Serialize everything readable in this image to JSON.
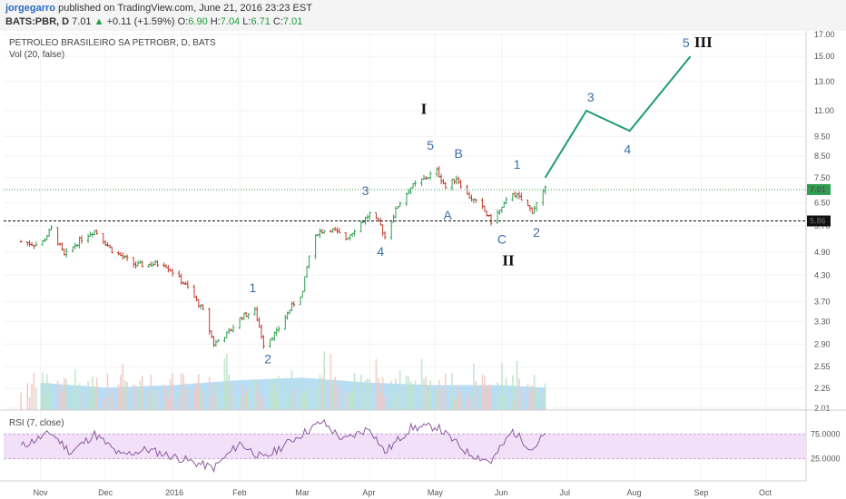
{
  "header": {
    "author": "jorgegarro",
    "published": "published on TradingView.com, June 21, 2016 23:23 EST",
    "symbol": "BATS:PBR, D",
    "last": "7.01",
    "arrow": "▲",
    "change": "+0.11 (+1.59%)",
    "o_key": "O:",
    "o_val": "6.90",
    "h_key": "H:",
    "h_val": "7.04",
    "l_key": "L:",
    "l_val": "6.71",
    "c_key": "C:",
    "c_val": "7.01"
  },
  "chart_data": {
    "type": "candlestick",
    "title": "PETROLEO BRASILEIRO SA PETROBR, D, BATS",
    "volume_label": "Vol (20, false)",
    "rsi_label": "RSI (7, close)",
    "price_axis_ticks": [
      "17.00",
      "15.00",
      "13.00",
      "11.00",
      "9.50",
      "8.50",
      "7.50",
      "6.50",
      "5.70",
      "4.90",
      "4.30",
      "3.70",
      "3.30",
      "2.90",
      "2.55",
      "2.25",
      "2.01"
    ],
    "last_price_tag": "7.01",
    "support_level": 5.86,
    "support_tag": "5.86",
    "rsi_axis_ticks": [
      "75.0000",
      "25.0000"
    ],
    "rsi_bands": [
      70,
      30
    ],
    "x_ticks": [
      "Nov",
      "Dec",
      "2016",
      "Feb",
      "Mar",
      "Apr",
      "May",
      "Jun",
      "Jul",
      "Aug",
      "Sep",
      "Oct"
    ],
    "price_path": [
      {
        "date": "2015-10-23",
        "close": 5.2
      },
      {
        "date": "2015-11-01",
        "close": 5.1
      },
      {
        "date": "2015-11-06",
        "close": 5.6
      },
      {
        "date": "2015-11-12",
        "close": 4.8
      },
      {
        "date": "2015-11-20",
        "close": 5.3
      },
      {
        "date": "2015-11-26",
        "close": 5.55
      },
      {
        "date": "2015-12-04",
        "close": 4.95
      },
      {
        "date": "2015-12-15",
        "close": 4.55
      },
      {
        "date": "2015-12-28",
        "close": 4.6
      },
      {
        "date": "2016-01-08",
        "close": 4.0
      },
      {
        "date": "2016-01-15",
        "close": 3.5
      },
      {
        "date": "2016-01-20",
        "close": 2.9
      },
      {
        "date": "2016-01-27",
        "close": 3.1
      },
      {
        "date": "2016-02-02",
        "close": 3.4
      },
      {
        "date": "2016-02-08",
        "close": 3.5
      },
      {
        "date": "2016-02-12",
        "close": 2.9
      },
      {
        "date": "2016-02-18",
        "close": 3.1
      },
      {
        "date": "2016-02-25",
        "close": 3.6
      },
      {
        "date": "2016-03-01",
        "close": 3.9
      },
      {
        "date": "2016-03-04",
        "close": 4.8
      },
      {
        "date": "2016-03-08",
        "close": 5.5
      },
      {
        "date": "2016-03-14",
        "close": 5.6
      },
      {
        "date": "2016-03-21",
        "close": 5.3
      },
      {
        "date": "2016-03-28",
        "close": 5.8
      },
      {
        "date": "2016-04-01",
        "close": 6.1
      },
      {
        "date": "2016-04-06",
        "close": 5.7
      },
      {
        "date": "2016-04-08",
        "close": 5.35
      },
      {
        "date": "2016-04-14",
        "close": 6.4
      },
      {
        "date": "2016-04-20",
        "close": 7.1
      },
      {
        "date": "2016-04-27",
        "close": 7.5
      },
      {
        "date": "2016-05-02",
        "close": 7.8
      },
      {
        "date": "2016-05-06",
        "close": 7.1
      },
      {
        "date": "2016-05-11",
        "close": 7.5
      },
      {
        "date": "2016-05-16",
        "close": 6.8
      },
      {
        "date": "2016-05-23",
        "close": 6.3
      },
      {
        "date": "2016-05-27",
        "close": 5.85
      },
      {
        "date": "2016-06-01",
        "close": 6.3
      },
      {
        "date": "2016-06-06",
        "close": 6.9
      },
      {
        "date": "2016-06-10",
        "close": 6.6
      },
      {
        "date": "2016-06-15",
        "close": 6.2
      },
      {
        "date": "2016-06-21",
        "close": 7.01
      }
    ],
    "volume": [
      {
        "date": "2015-11-01",
        "vol": 0.55
      },
      {
        "date": "2015-12-01",
        "vol": 0.45
      },
      {
        "date": "2016-01-01",
        "vol": 0.5
      },
      {
        "date": "2016-02-01",
        "vol": 0.6
      },
      {
        "date": "2016-03-01",
        "vol": 0.65
      },
      {
        "date": "2016-04-01",
        "vol": 0.55
      },
      {
        "date": "2016-05-01",
        "vol": 0.5
      },
      {
        "date": "2016-06-01",
        "vol": 0.5
      },
      {
        "date": "2016-06-21",
        "vol": 0.45
      }
    ],
    "rsi": [
      {
        "date": "2015-10-23",
        "v": 50
      },
      {
        "date": "2015-11-06",
        "v": 72
      },
      {
        "date": "2015-11-15",
        "v": 40
      },
      {
        "date": "2015-11-26",
        "v": 70
      },
      {
        "date": "2015-12-08",
        "v": 35
      },
      {
        "date": "2015-12-20",
        "v": 45
      },
      {
        "date": "2016-01-05",
        "v": 30
      },
      {
        "date": "2016-01-20",
        "v": 15
      },
      {
        "date": "2016-02-01",
        "v": 55
      },
      {
        "date": "2016-02-12",
        "v": 30
      },
      {
        "date": "2016-02-25",
        "v": 60
      },
      {
        "date": "2016-03-10",
        "v": 90
      },
      {
        "date": "2016-03-20",
        "v": 60
      },
      {
        "date": "2016-04-01",
        "v": 80
      },
      {
        "date": "2016-04-08",
        "v": 40
      },
      {
        "date": "2016-04-20",
        "v": 80
      },
      {
        "date": "2016-05-02",
        "v": 82
      },
      {
        "date": "2016-05-16",
        "v": 40
      },
      {
        "date": "2016-05-27",
        "v": 25
      },
      {
        "date": "2016-06-06",
        "v": 75
      },
      {
        "date": "2016-06-15",
        "v": 45
      },
      {
        "date": "2016-06-21",
        "v": 70
      }
    ],
    "forecast_path": [
      {
        "date": "2016-06-21",
        "price": 7.5
      },
      {
        "date": "2016-07-10",
        "price": 11.0
      },
      {
        "date": "2016-07-30",
        "price": 9.8
      },
      {
        "date": "2016-08-27",
        "price": 15.0
      }
    ],
    "wave_labels": [
      {
        "text": "1",
        "date": "2016-02-07",
        "price": 3.9,
        "kind": "small"
      },
      {
        "text": "2",
        "date": "2016-02-14",
        "price": 2.6,
        "kind": "small"
      },
      {
        "text": "3",
        "date": "2016-03-30",
        "price": 6.8,
        "kind": "small"
      },
      {
        "text": "4",
        "date": "2016-04-06",
        "price": 4.8,
        "kind": "small"
      },
      {
        "text": "5",
        "date": "2016-04-29",
        "price": 8.8,
        "kind": "small"
      },
      {
        "text": "A",
        "date": "2016-05-07",
        "price": 5.9,
        "kind": "small"
      },
      {
        "text": "B",
        "date": "2016-05-12",
        "price": 8.4,
        "kind": "small"
      },
      {
        "text": "C",
        "date": "2016-06-01",
        "price": 5.15,
        "kind": "small"
      },
      {
        "text": "1",
        "date": "2016-06-08",
        "price": 7.9,
        "kind": "small"
      },
      {
        "text": "2",
        "date": "2016-06-17",
        "price": 5.35,
        "kind": "small"
      },
      {
        "text": "3",
        "date": "2016-07-12",
        "price": 11.6,
        "kind": "small"
      },
      {
        "text": "4",
        "date": "2016-07-29",
        "price": 8.6,
        "kind": "small"
      },
      {
        "text": "5",
        "date": "2016-08-25",
        "price": 15.8,
        "kind": "small"
      },
      {
        "text": "I",
        "date": "2016-04-26",
        "price": 10.8,
        "kind": "big"
      },
      {
        "text": "II",
        "date": "2016-06-04",
        "price": 4.55,
        "kind": "big"
      },
      {
        "text": "III",
        "date": "2016-09-02",
        "price": 15.8,
        "kind": "big"
      }
    ],
    "colors": {
      "up": "#2e9e4f",
      "down": "#c0392b",
      "forecast": "#1e9e6e",
      "wave": "#3b6ea5",
      "rsi_line": "#8c5a9e",
      "rsi_band": "#f1e0f7",
      "volume_fill": "#9fd3f2",
      "volume_bar": "#8ec5e8"
    }
  }
}
